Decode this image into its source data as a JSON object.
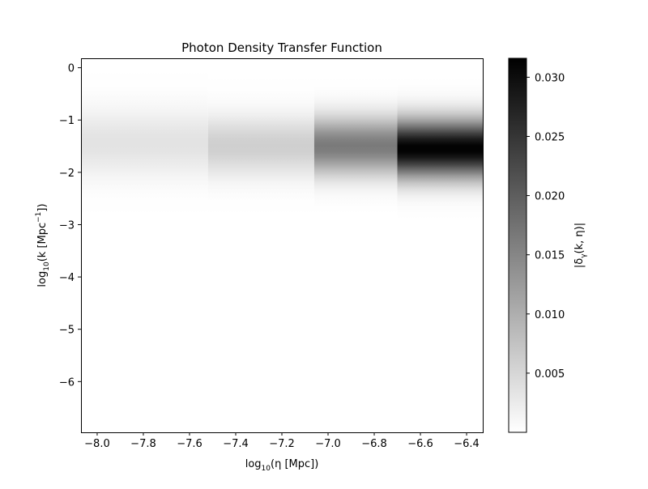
{
  "chart_data": {
    "type": "heatmap",
    "title": "Photon Density Transfer Function",
    "xlabel": {
      "prefix": "log",
      "sub": "10",
      "text": "(η [Mpc])"
    },
    "ylabel": {
      "prefix": "log",
      "sub": "10",
      "pre": "(k [Mpc",
      "sup": "−1",
      "post": "])"
    },
    "colorbar_label": "|δ",
    "colorbar_label_sub": "γ",
    "colorbar_label_tail": "(k, η)|",
    "xlim": [
      -8.07,
      -6.33
    ],
    "ylim": [
      -6.97,
      0.18
    ],
    "x_ticks": [
      -8.0,
      -7.8,
      -7.6,
      -7.4,
      -7.2,
      -7.0,
      -6.8,
      -6.6,
      -6.4
    ],
    "x_tick_labels": [
      "−8.0",
      "−7.8",
      "−7.6",
      "−7.4",
      "−7.2",
      "−7.0",
      "−6.8",
      "−6.6",
      "−6.4"
    ],
    "y_ticks": [
      0,
      -1,
      -2,
      -3,
      -4,
      -5,
      -6
    ],
    "y_tick_labels": [
      "0",
      "−1",
      "−2",
      "−3",
      "−4",
      "−5",
      "−6"
    ],
    "colorbar_range": [
      0.0,
      0.0316
    ],
    "colorbar_ticks": [
      0.005,
      0.01,
      0.015,
      0.02,
      0.025,
      0.03
    ],
    "colorbar_tick_labels": [
      "0.005",
      "0.010",
      "0.015",
      "0.020",
      "0.025",
      "0.030"
    ],
    "colormap": "gray_r",
    "columns": [
      {
        "x_range": [
          -8.07,
          -7.52
        ],
        "peak_logk": -1.45,
        "peak_value": 0.0035,
        "width": 0.45
      },
      {
        "x_range": [
          -7.52,
          -7.06
        ],
        "peak_logk": -1.5,
        "peak_value": 0.006,
        "width": 0.4
      },
      {
        "x_range": [
          -7.06,
          -6.7
        ],
        "peak_logk": -1.5,
        "peak_value": 0.0165,
        "width": 0.38
      },
      {
        "x_range": [
          -6.7,
          -6.33
        ],
        "peak_logk": -1.55,
        "peak_value": 0.0316,
        "width": 0.38
      }
    ]
  }
}
